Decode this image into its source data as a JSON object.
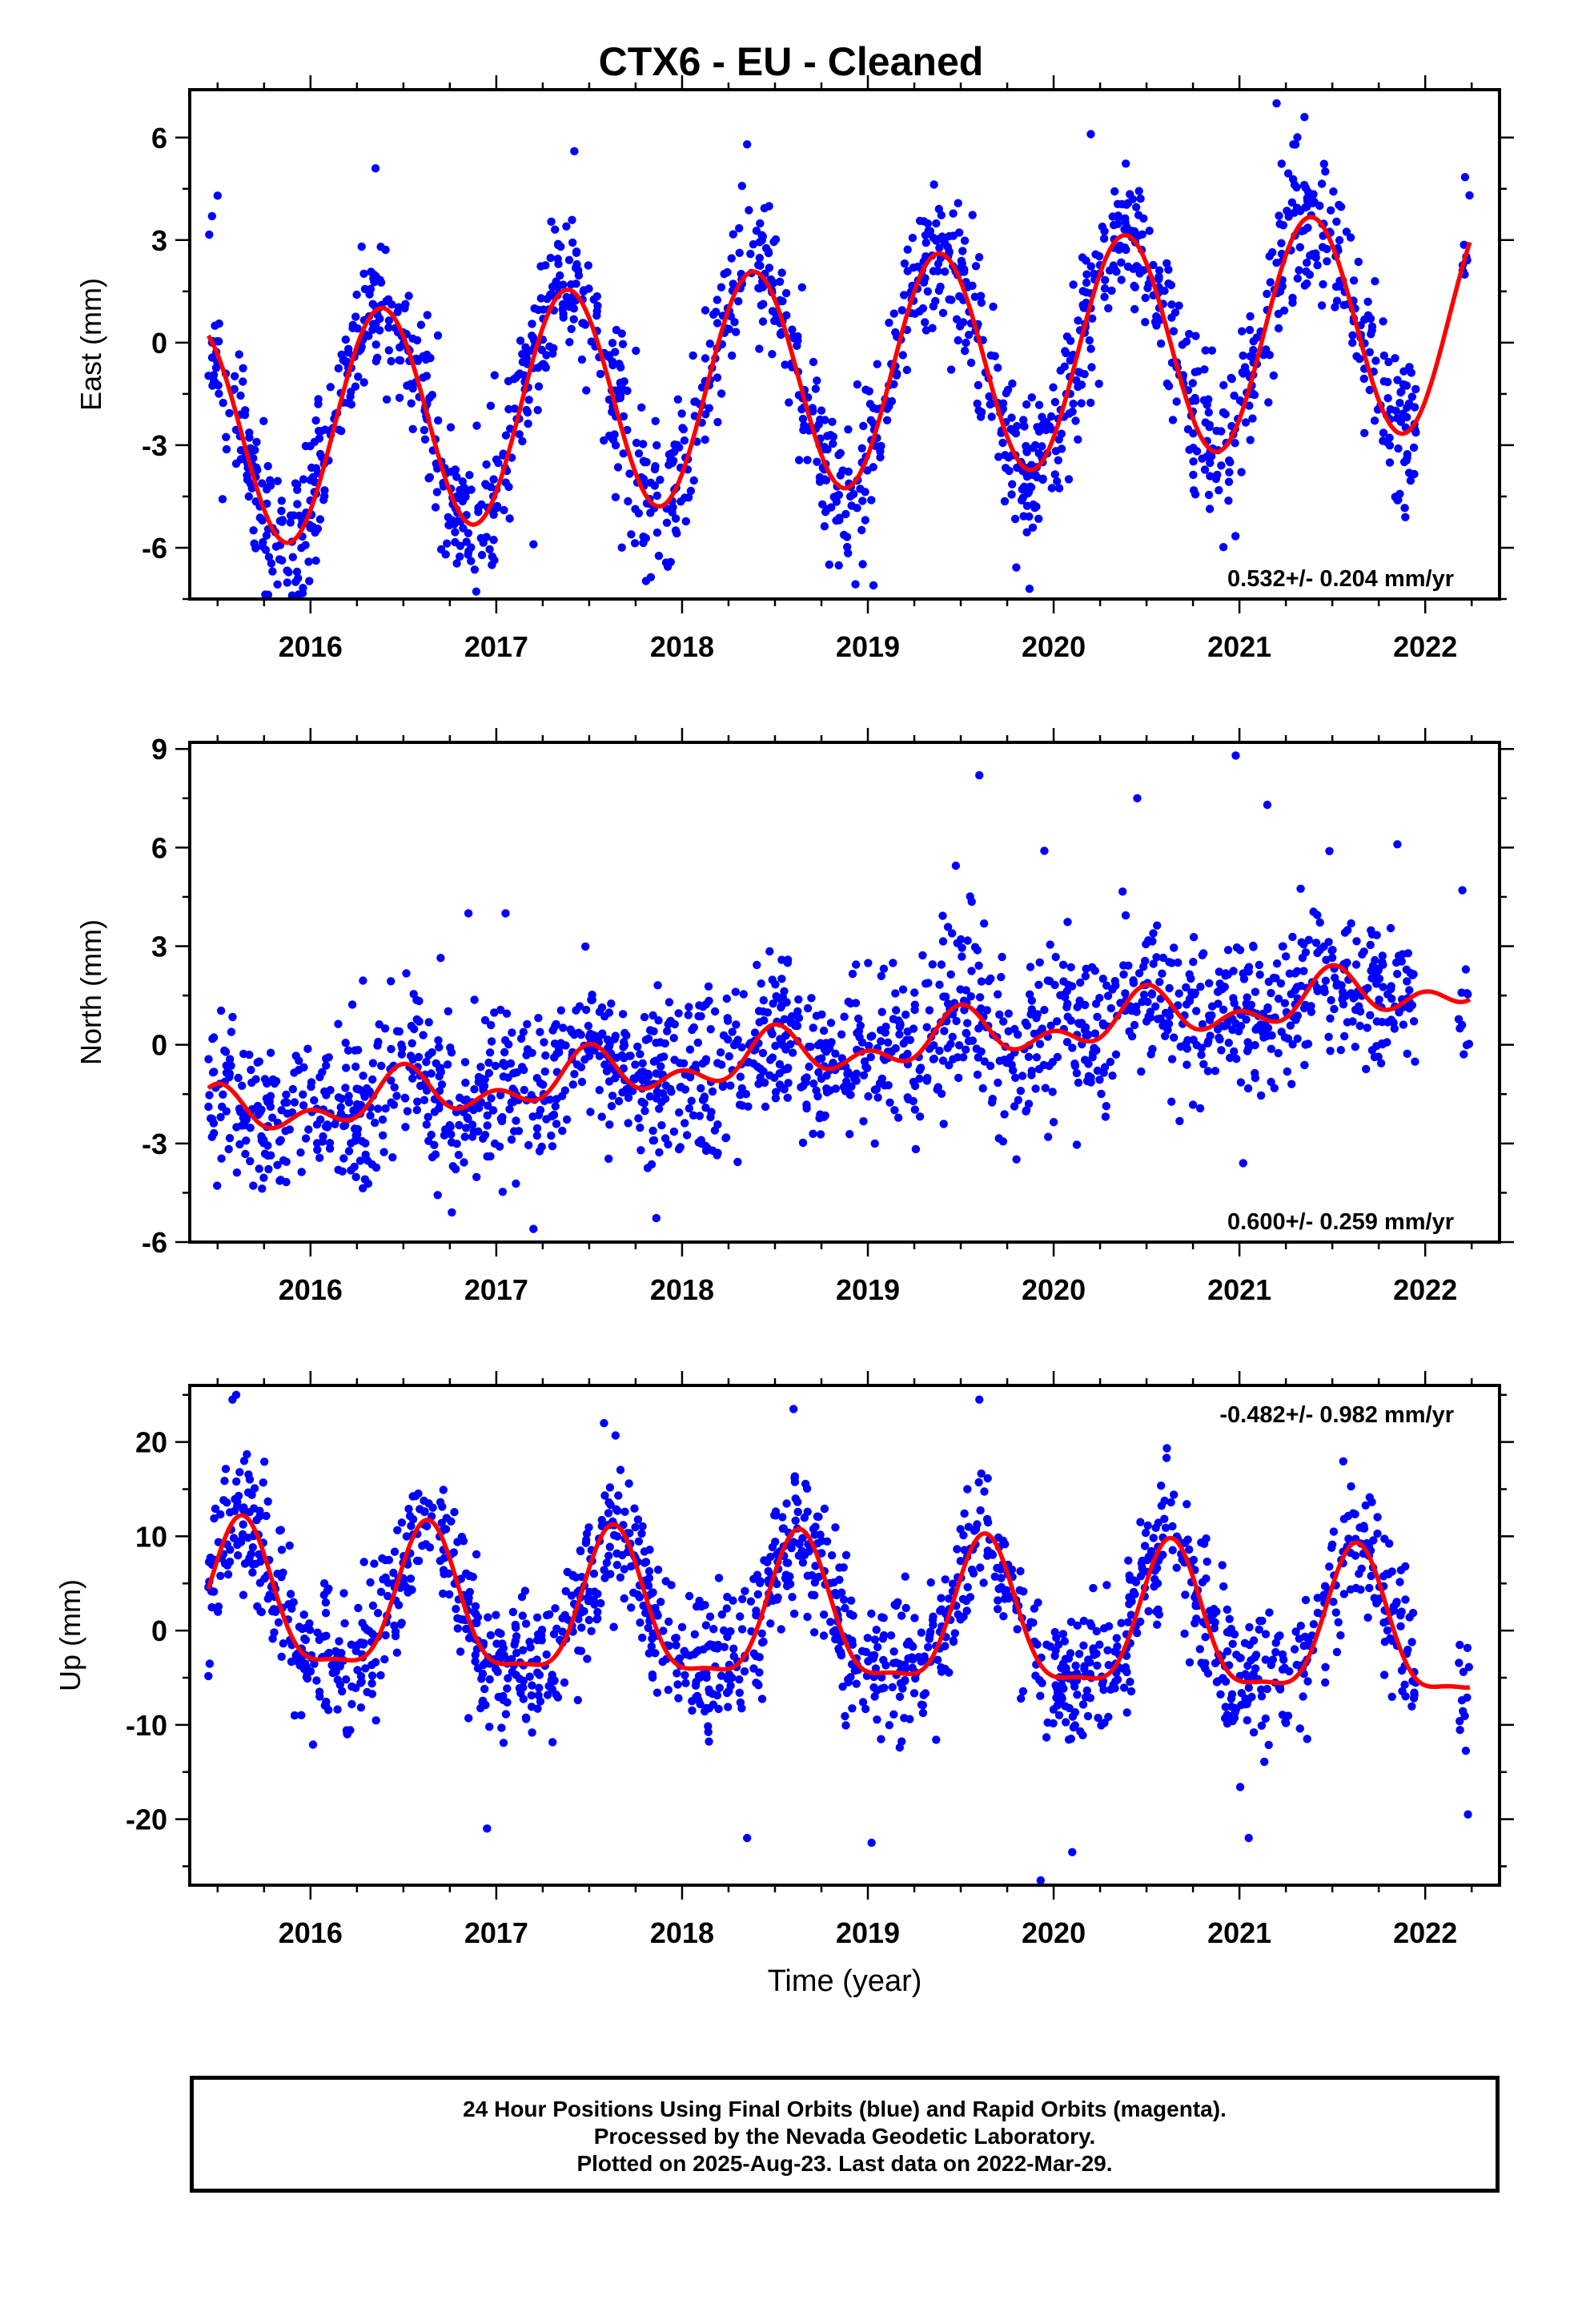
{
  "title": "CTX6  - EU - Cleaned",
  "xlabel": "Time (year)",
  "footer": {
    "line1": "24 Hour Positions Using Final Orbits (blue) and Rapid Orbits (magenta).",
    "line2": "Processed by the Nevada Geodetic Laboratory.",
    "line3": "Plotted on 2025-Aug-23. Last data on 2022-Mar-29."
  },
  "colors": {
    "points": "#0000ff",
    "fit": "#ff0000",
    "axes": "#000000"
  },
  "chart_data": [
    {
      "type": "scatter",
      "ylabel": "East (mm)",
      "rate": "0.532+/- 0.204 mm/yr",
      "rate_position": "bottom-right",
      "xlim": [
        2015.35,
        2022.4
      ],
      "ylim": [
        -7.5,
        7.4
      ],
      "xticks": [
        "2016",
        "2017",
        "2018",
        "2019",
        "2020",
        "2021",
        "2022"
      ],
      "yticks": [
        "-6",
        "-3",
        "0",
        "3",
        "6"
      ],
      "data_range": [
        2015.45,
        2022.24
      ],
      "fit": {
        "trend": 0.532,
        "offset": -1.0,
        "annual_amp": 3.3,
        "annual_peak": 0.38,
        "semi_amp": 0.0,
        "semi_peak": 0.0
      },
      "scatter_sd": 1.1,
      "outliers": [
        [
          2015.47,
          3.7
        ],
        [
          2015.5,
          4.3
        ],
        [
          2015.92,
          -7.0
        ],
        [
          2016.35,
          5.1
        ],
        [
          2017.2,
          -5.9
        ],
        [
          2017.42,
          5.6
        ],
        [
          2018.35,
          5.8
        ],
        [
          2019.03,
          -7.1
        ],
        [
          2019.87,
          -7.2
        ],
        [
          2020.2,
          6.1
        ],
        [
          2021.2,
          7.0
        ],
        [
          2021.35,
          6.6
        ]
      ]
    },
    {
      "type": "scatter",
      "ylabel": "North (mm)",
      "rate": "0.600+/- 0.259 mm/yr",
      "rate_position": "bottom-right",
      "xlim": [
        2015.35,
        2022.4
      ],
      "ylim": [
        -6.0,
        9.2
      ],
      "xticks": [
        "2016",
        "2017",
        "2018",
        "2019",
        "2020",
        "2021",
        "2022"
      ],
      "yticks": [
        "-6",
        "-3",
        "0",
        "3",
        "6",
        "9"
      ],
      "data_range": [
        2015.45,
        2022.24
      ],
      "fit": {
        "trend": 0.6,
        "offset": -0.2,
        "annual_amp": 0.55,
        "annual_peak": 0.5,
        "semi_amp": 0.45,
        "semi_peak": 0.5
      },
      "scatter_sd": 1.2,
      "outliers": [
        [
          2019.6,
          8.2
        ],
        [
          2020.45,
          7.5
        ],
        [
          2020.98,
          8.8
        ],
        [
          2021.15,
          7.3
        ],
        [
          2021.02,
          -3.6
        ],
        [
          2017.2,
          -5.6
        ],
        [
          2016.85,
          4.0
        ],
        [
          2017.05,
          4.0
        ],
        [
          2019.95,
          5.9
        ],
        [
          2021.85,
          6.1
        ],
        [
          2022.2,
          4.7
        ]
      ]
    },
    {
      "type": "scatter",
      "ylabel": "Up (mm)",
      "rate": "-0.482+/- 0.982 mm/yr",
      "rate_position": "top-right",
      "xlim": [
        2015.35,
        2022.4
      ],
      "ylim": [
        -27.0,
        26.0
      ],
      "xticks": [
        "2016",
        "2017",
        "2018",
        "2019",
        "2020",
        "2021",
        "2022"
      ],
      "yticks": [
        "-20",
        "-10",
        "0",
        "10",
        "20"
      ],
      "data_range": [
        2015.45,
        2022.24
      ],
      "fit": {
        "trend": -0.482,
        "offset": 1.0,
        "annual_amp": 7.5,
        "annual_peak": 0.63,
        "semi_amp": 2.2,
        "semi_peak": 0.13
      },
      "scatter_sd": 3.7,
      "outliers": [
        [
          2015.58,
          24.5
        ],
        [
          2015.6,
          25.0
        ],
        [
          2017.58,
          22.0
        ],
        [
          2018.6,
          23.5
        ],
        [
          2019.6,
          24.5
        ],
        [
          2019.93,
          -26.5
        ],
        [
          2019.02,
          -22.5
        ],
        [
          2020.1,
          -23.5
        ],
        [
          2016.95,
          -21.0
        ],
        [
          2018.35,
          -22.0
        ],
        [
          2021.05,
          -22.0
        ],
        [
          2022.23,
          -19.5
        ]
      ]
    }
  ]
}
